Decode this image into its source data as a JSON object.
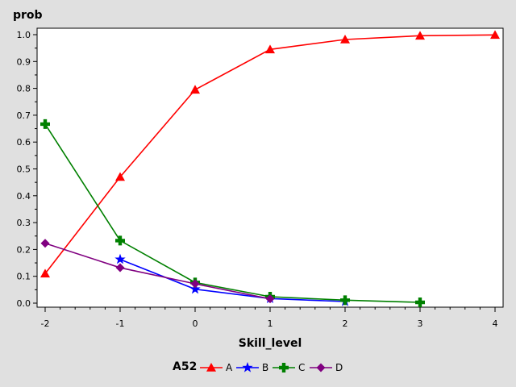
{
  "chart_data": {
    "type": "line",
    "title": "",
    "xlabel": "Skill_level",
    "ylabel": "prob",
    "xlim": [
      -2,
      4
    ],
    "ylim": [
      0,
      1
    ],
    "x_ticks": [
      -2,
      -1,
      0,
      1,
      2,
      3,
      4
    ],
    "y_ticks": [
      "0.0",
      "0.1",
      "0.2",
      "0.3",
      "0.4",
      "0.5",
      "0.6",
      "0.7",
      "0.8",
      "0.9",
      "1.0"
    ],
    "grid": false,
    "legend": {
      "title": "A52",
      "position": "bottom"
    },
    "series": [
      {
        "name": "A",
        "color": "#ff0000",
        "marker": "triangle",
        "x": [
          -2,
          -1,
          0,
          1,
          2,
          3,
          4
        ],
        "y": [
          0.11,
          0.47,
          0.795,
          0.945,
          0.982,
          0.996,
          0.999
        ]
      },
      {
        "name": "B",
        "color": "#0000ff",
        "marker": "star",
        "x": [
          -1,
          0,
          1,
          2
        ],
        "y": [
          0.163,
          0.052,
          0.017,
          0.006
        ]
      },
      {
        "name": "C",
        "color": "#008000",
        "marker": "plus",
        "x": [
          -2,
          -1,
          0,
          1,
          2,
          3
        ],
        "y": [
          0.667,
          0.233,
          0.077,
          0.024,
          0.011,
          0.003
        ]
      },
      {
        "name": "D",
        "color": "#800080",
        "marker": "diamond",
        "x": [
          -2,
          -1,
          0,
          1
        ],
        "y": [
          0.223,
          0.132,
          0.072,
          0.016
        ]
      }
    ]
  }
}
